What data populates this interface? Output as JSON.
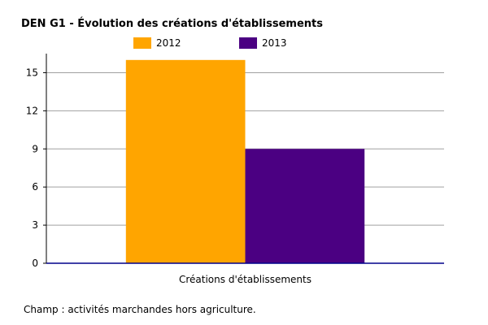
{
  "header": {
    "title": "DEN G1 - Évolution des créations d'établissements"
  },
  "footer": {
    "note": "Champ : activités marchandes hors agriculture."
  },
  "colors": {
    "series_2012": "#FFA500",
    "series_2013": "#4B0082",
    "grid": "#a0a0a0",
    "axis": "#00008b"
  },
  "chart_data": {
    "type": "bar",
    "title": "DEN G1 - Évolution des créations d'établissements",
    "categories": [
      "Créations d'établissements"
    ],
    "series": [
      {
        "name": "2012",
        "values": [
          16
        ]
      },
      {
        "name": "2013",
        "values": [
          9
        ]
      }
    ],
    "xlabel": "",
    "ylabel": "",
    "ylim": [
      0,
      16.5
    ],
    "yticks": [
      0,
      3,
      6,
      9,
      12,
      15
    ],
    "grid": true,
    "legend": "top"
  }
}
